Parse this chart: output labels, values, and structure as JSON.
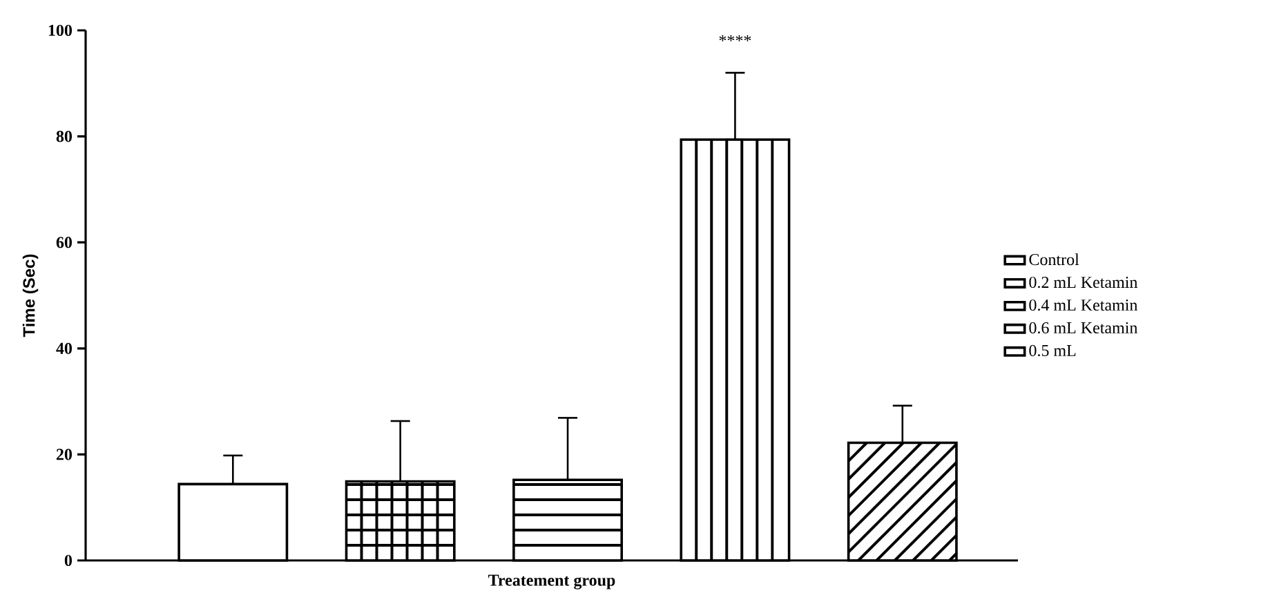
{
  "chart_data": {
    "type": "bar",
    "xlabel": "Treatement group",
    "ylabel": "Time (Sec)",
    "categories": [
      null,
      null,
      null,
      null,
      null
    ],
    "series": [
      {
        "name": "Control",
        "color": "#000000",
        "values": [
          14.4,
          null,
          null,
          null,
          null
        ],
        "errors": [
          [
            14.4,
            19.8
          ],
          null,
          null,
          null,
          null
        ]
      },
      {
        "name": "0.2 mL Ketamin",
        "color": "#000000",
        "values": [
          null,
          14.9,
          null,
          null,
          null
        ],
        "errors": [
          null,
          [
            14.9,
            26.3
          ],
          null,
          null,
          null
        ]
      },
      {
        "name": "0.4 mL Ketamin",
        "color": "#000000",
        "values": [
          null,
          null,
          15.2,
          null,
          null
        ],
        "errors": [
          null,
          null,
          [
            15.2,
            26.9
          ],
          null,
          null
        ]
      },
      {
        "name": "0.6 mL Ketamin",
        "color": "#000000",
        "values": [
          null,
          null,
          null,
          79.4,
          null
        ],
        "errors": [
          null,
          null,
          null,
          [
            79.4,
            92.0
          ],
          null
        ]
      },
      {
        "name": "0.5 mL",
        "color": "#000000",
        "values": [
          null,
          null,
          null,
          null,
          22.2
        ],
        "errors": [
          null,
          null,
          null,
          null,
          [
            22.2,
            29.2
          ]
        ]
      }
    ],
    "ylim": [
      0,
      100
    ],
    "yticks": [
      0,
      20,
      40,
      60,
      80,
      100
    ],
    "annotations": [
      "****"
    ],
    "legend": "right"
  }
}
